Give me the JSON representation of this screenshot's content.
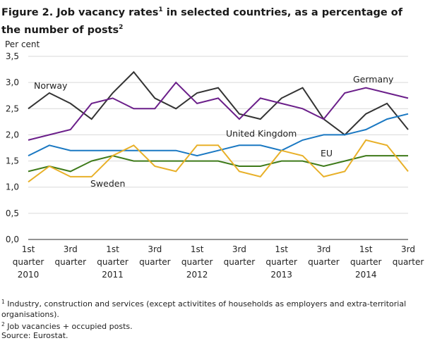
{
  "title": {
    "main": "Figure 2. Job vacancy rates",
    "sup1": "1",
    "middle": "  in selected countries, as a percentage of the number of posts",
    "sup2": "2"
  },
  "chart_data": {
    "type": "line",
    "ylabel": "Per cent",
    "ylim": [
      0,
      3.5
    ],
    "yticks": [
      "0,0",
      "0,5",
      "1,0",
      "1,5",
      "2,0",
      "2,5",
      "3,0",
      "3,5"
    ],
    "grid": "horizontal",
    "x_tick_labels": [
      {
        "lines": [
          "1st",
          "quarter",
          "2010"
        ]
      },
      {
        "lines": [
          "3rd",
          "quarter",
          ""
        ]
      },
      {
        "lines": [
          "1st",
          "quarter",
          "2011"
        ]
      },
      {
        "lines": [
          "3rd",
          "quarter",
          ""
        ]
      },
      {
        "lines": [
          "1st",
          "quarter",
          "2012"
        ]
      },
      {
        "lines": [
          "3rd",
          "quarter",
          ""
        ]
      },
      {
        "lines": [
          "1st",
          "quarter",
          "2013"
        ]
      },
      {
        "lines": [
          "3rd",
          "quarter",
          ""
        ]
      },
      {
        "lines": [
          "1st",
          "quarter",
          "2014"
        ]
      },
      {
        "lines": [
          "3rd",
          "quarter",
          ""
        ]
      }
    ],
    "series": [
      {
        "name": "Norway",
        "color": "#333333",
        "values": [
          2.5,
          2.8,
          2.6,
          2.3,
          2.8,
          3.2,
          2.7,
          2.5,
          2.8,
          2.9,
          2.4,
          2.3,
          2.7,
          2.9,
          2.3,
          2.0,
          2.4,
          2.6,
          2.1
        ]
      },
      {
        "name": "Germany",
        "color": "#6b1f8a",
        "values": [
          1.9,
          2.0,
          2.1,
          2.6,
          2.7,
          2.5,
          2.5,
          3.0,
          2.6,
          2.7,
          2.3,
          2.7,
          2.6,
          2.5,
          2.3,
          2.8,
          2.9,
          2.8,
          2.7
        ]
      },
      {
        "name": "United Kingdom",
        "color": "#1a78c2",
        "values": [
          1.6,
          1.8,
          1.7,
          1.7,
          1.7,
          1.7,
          1.7,
          1.7,
          1.6,
          1.7,
          1.8,
          1.8,
          1.7,
          1.9,
          2.0,
          2.0,
          2.1,
          2.3,
          2.4
        ]
      },
      {
        "name": "EU",
        "color": "#3e7a1a",
        "values": [
          1.3,
          1.4,
          1.3,
          1.5,
          1.6,
          1.5,
          1.5,
          1.5,
          1.5,
          1.5,
          1.4,
          1.4,
          1.5,
          1.5,
          1.4,
          1.5,
          1.6,
          1.6,
          1.6
        ]
      },
      {
        "name": "Sweden",
        "color": "#e8b028",
        "values": [
          1.1,
          1.4,
          1.2,
          1.2,
          1.6,
          1.8,
          1.4,
          1.3,
          1.8,
          1.8,
          1.3,
          1.2,
          1.7,
          1.6,
          1.2,
          1.3,
          1.9,
          1.8,
          1.3
        ]
      }
    ]
  },
  "footnotes": {
    "note1_sup": "1",
    "note1_text": " Industry, construction and services (except activitites of households as employers and extra-territorial organisations).",
    "note2_sup": "2",
    "note2_text": " Job vacancies + occupied posts.",
    "source": "Source: Eurostat."
  }
}
